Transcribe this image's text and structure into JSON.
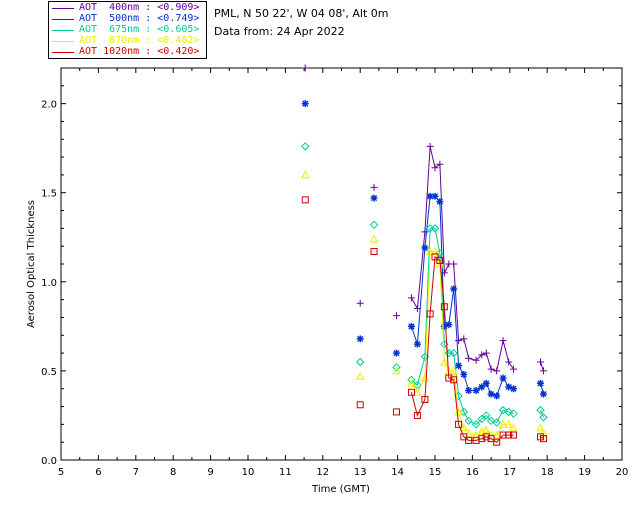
{
  "legend": [
    {
      "label": "AOT  400nm : <0.909>",
      "color": "#660099"
    },
    {
      "label": "AOT  500nm : <0.749>",
      "color": "#0033cc"
    },
    {
      "label": "AOT  675nm : <0.605>",
      "color": "#00cc99"
    },
    {
      "label": "AOT  870nm : <0.482>",
      "color": "#eeee00"
    },
    {
      "label": "AOT 1020nm : <0.420>",
      "color": "#cc0000"
    }
  ],
  "info": {
    "site": "PML, N 50 22', W 04 08', Alt 0m",
    "date": "Data from: 24 Apr 2022"
  },
  "chart_data": {
    "type": "line",
    "title": "",
    "xlabel": "Time (GMT)",
    "ylabel": "Aerosol Optical Thickness",
    "xlim": [
      5,
      20
    ],
    "ylim": [
      0,
      2.2
    ],
    "xticks": [
      "5",
      "6",
      "7",
      "8",
      "9",
      "10",
      "11",
      "12",
      "13",
      "14",
      "15",
      "16",
      "17",
      "18",
      "19",
      "20"
    ],
    "yticks": [
      "0.0",
      "0.5",
      "1.0",
      "1.5",
      "2.0"
    ],
    "x": [
      11.53,
      13.0,
      13.37,
      13.97,
      14.37,
      14.53,
      14.73,
      14.87,
      15.0,
      15.13,
      15.25,
      15.37,
      15.5,
      15.63,
      15.77,
      15.9,
      16.1,
      16.25,
      16.37,
      16.5,
      16.65,
      16.82,
      16.97,
      17.1,
      17.82,
      17.9
    ],
    "segments": [
      [
        0,
        0
      ],
      [
        1,
        1
      ],
      [
        2,
        2
      ],
      [
        3,
        3
      ],
      [
        4,
        5,
        6,
        7,
        8,
        9,
        10,
        11,
        12,
        13,
        14,
        15,
        16,
        17,
        18,
        19,
        20,
        21,
        22,
        23
      ],
      [
        24,
        25
      ]
    ],
    "series": [
      {
        "name": "AOT 400nm",
        "marker": "plus",
        "color": "#660099",
        "values": [
          2.2,
          0.88,
          1.53,
          0.81,
          0.91,
          0.85,
          1.28,
          1.76,
          1.64,
          1.66,
          1.05,
          1.1,
          1.1,
          0.67,
          0.68,
          0.57,
          0.56,
          0.59,
          0.6,
          0.51,
          0.5,
          0.67,
          0.55,
          0.51,
          0.55,
          0.5
        ]
      },
      {
        "name": "AOT 500nm",
        "marker": "asterisk",
        "color": "#0033cc",
        "values": [
          2.0,
          0.68,
          1.47,
          0.6,
          0.75,
          0.65,
          1.19,
          1.48,
          1.48,
          1.45,
          0.75,
          0.76,
          0.96,
          0.53,
          0.48,
          0.39,
          0.39,
          0.41,
          0.43,
          0.37,
          0.36,
          0.46,
          0.41,
          0.4,
          0.43,
          0.37
        ]
      },
      {
        "name": "AOT 675nm",
        "marker": "diamond",
        "color": "#00cc99",
        "values": [
          1.76,
          0.55,
          1.32,
          0.52,
          0.45,
          0.42,
          0.58,
          1.3,
          1.3,
          1.16,
          0.65,
          0.6,
          0.6,
          0.36,
          0.27,
          0.22,
          0.2,
          0.23,
          0.25,
          0.22,
          0.21,
          0.28,
          0.27,
          0.26,
          0.28,
          0.24
        ]
      },
      {
        "name": "AOT 870nm",
        "marker": "triangle",
        "color": "#eeee00",
        "values": [
          1.6,
          0.47,
          1.24,
          0.5,
          0.43,
          0.38,
          0.46,
          1.17,
          1.17,
          1.1,
          0.55,
          0.5,
          0.5,
          0.27,
          0.18,
          0.15,
          0.14,
          0.16,
          0.17,
          0.14,
          0.14,
          0.2,
          0.2,
          0.18,
          0.18,
          0.15
        ]
      },
      {
        "name": "AOT 1020nm",
        "marker": "square",
        "color": "#cc0000",
        "values": [
          1.46,
          0.31,
          1.17,
          0.27,
          0.38,
          0.25,
          0.34,
          0.82,
          1.14,
          1.12,
          0.86,
          0.46,
          0.45,
          0.2,
          0.13,
          0.11,
          0.11,
          0.12,
          0.13,
          0.12,
          0.1,
          0.14,
          0.14,
          0.14,
          0.13,
          0.12
        ]
      }
    ]
  }
}
